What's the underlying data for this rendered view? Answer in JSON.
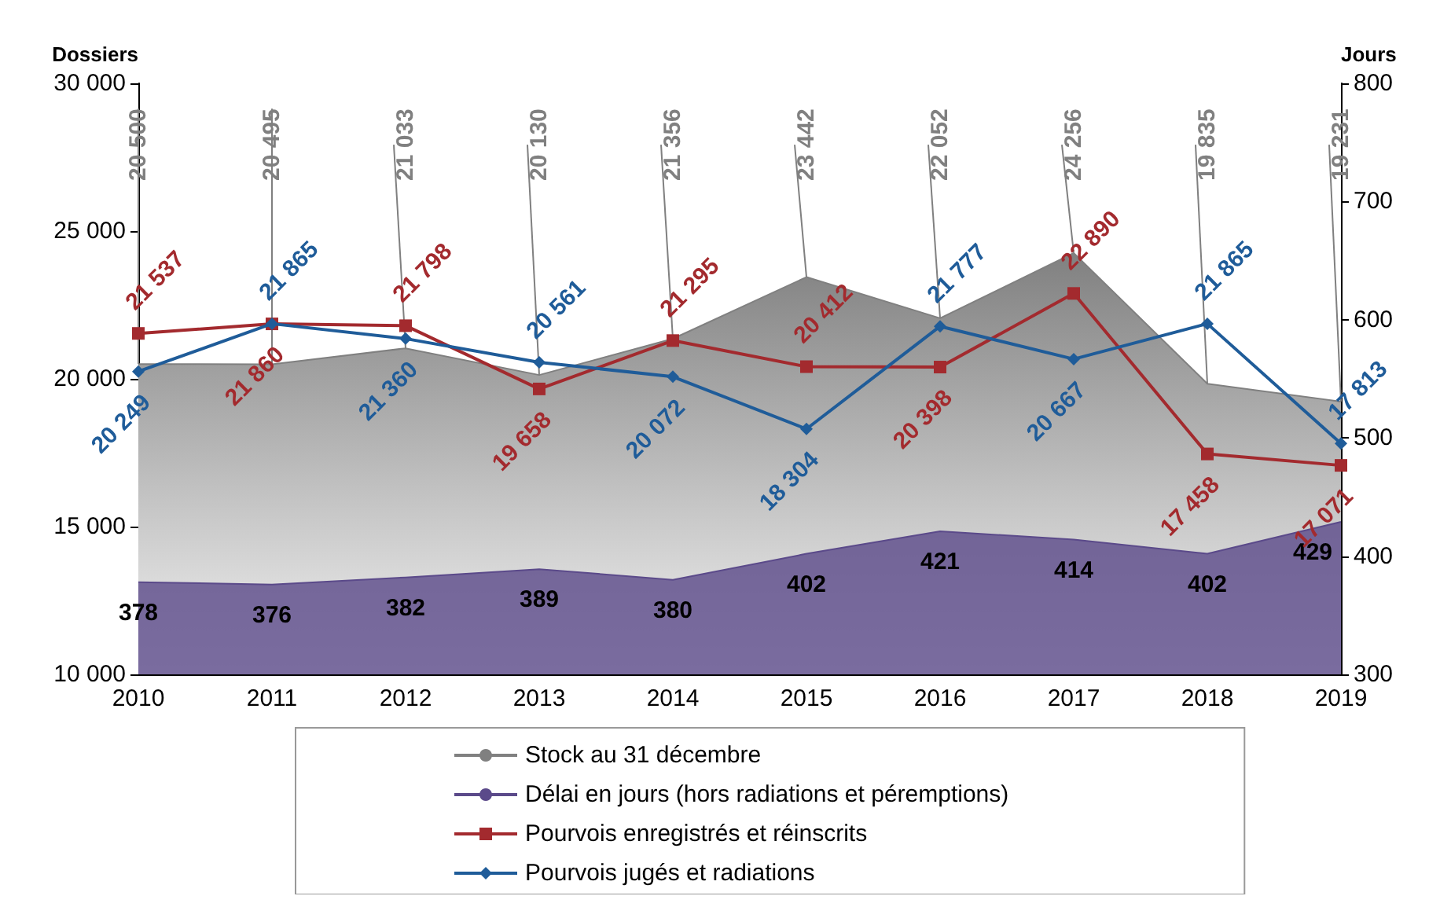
{
  "chart_data": {
    "type": "line",
    "categories": [
      "2010",
      "2011",
      "2012",
      "2013",
      "2014",
      "2015",
      "2016",
      "2017",
      "2018",
      "2019"
    ],
    "ylabel": "Dossiers",
    "y2label": "Jours",
    "ylim": [
      10000,
      30000
    ],
    "yticks": [
      {
        "value": 10000,
        "label": "10 000"
      },
      {
        "value": 15000,
        "label": "15 000"
      },
      {
        "value": 20000,
        "label": "20 000"
      },
      {
        "value": 25000,
        "label": "25 000"
      },
      {
        "value": 30000,
        "label": "30 000"
      }
    ],
    "y2lim": [
      300,
      800
    ],
    "y2ticks": [
      300,
      400,
      500,
      600,
      700,
      800
    ],
    "legend": "bottom",
    "grid": false,
    "series": [
      {
        "name": "Stock au 31 décembre",
        "type": "area",
        "color": "#808080",
        "marker": "none",
        "values": [
          20500,
          20495,
          21033,
          20130,
          21356,
          23442,
          22052,
          24256,
          19835,
          19231
        ],
        "value_labels": [
          "20 500",
          "20 495",
          "21 033",
          "20 130",
          "21 356",
          "23 442",
          "22 052",
          "24 256",
          "19 835",
          "19 231"
        ]
      },
      {
        "name": "Délai en jours (hors radiations et péremptions)",
        "type": "area",
        "axis": "y2",
        "color": "#5b4a8a",
        "marker": "none",
        "values": [
          378,
          376,
          382,
          389,
          380,
          402,
          421,
          414,
          402,
          429
        ],
        "value_labels": [
          "378",
          "376",
          "382",
          "389",
          "380",
          "402",
          "421",
          "414",
          "402",
          "429"
        ]
      },
      {
        "name": "Pourvois enregistrés et réinscrits",
        "type": "line",
        "color": "#a32a2e",
        "marker": "square",
        "values": [
          21537,
          21860,
          21798,
          19658,
          21295,
          20412,
          20398,
          22890,
          17458,
          17071
        ],
        "value_labels": [
          "21 537",
          "21 860",
          "21 798",
          "19 658",
          "21 295",
          "20 412",
          "20 398",
          "22 890",
          "17 458",
          "17 071"
        ]
      },
      {
        "name": "Pourvois jugés et radiations",
        "type": "line",
        "color": "#1f5c99",
        "marker": "diamond",
        "values": [
          20249,
          21865,
          21360,
          20561,
          20072,
          18304,
          21777,
          20667,
          21865,
          17813
        ],
        "value_labels": [
          "20 249",
          "21 865",
          "21 360",
          "20 561",
          "20 072",
          "18 304",
          "21 777",
          "20 667",
          "21 865",
          "17 813"
        ]
      }
    ]
  }
}
